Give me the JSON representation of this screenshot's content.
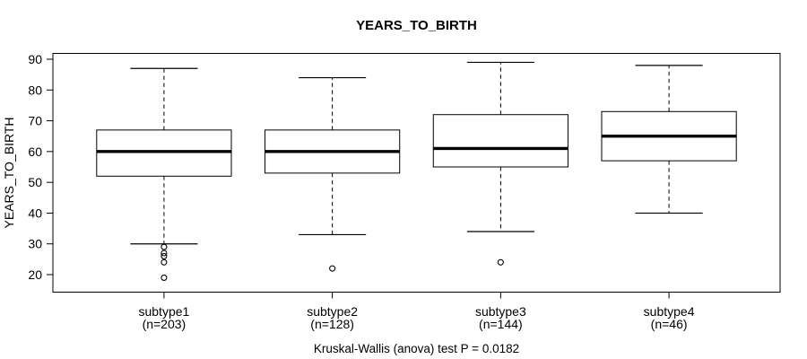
{
  "title": "YEARS_TO_BIRTH",
  "y_axis": {
    "label": "YEARS_TO_BIRTH",
    "ticks": [
      20,
      30,
      40,
      50,
      60,
      70,
      80,
      90
    ]
  },
  "caption": "Kruskal-Wallis (anova) test P = 0.0182",
  "colors": {
    "line": "#000000",
    "box_fill": "#ffffff",
    "background": "#ffffff"
  },
  "chart_data": {
    "type": "boxplot",
    "title": "YEARS_TO_BIRTH",
    "xlabel": "",
    "ylabel": "YEARS_TO_BIRTH",
    "ylim": [
      20,
      90
    ],
    "y_ticks": [
      20,
      30,
      40,
      50,
      60,
      70,
      80,
      90
    ],
    "grid": false,
    "legend": null,
    "annotation": "Kruskal-Wallis (anova) test P = 0.0182",
    "categories": [
      "subtype1",
      "subtype2",
      "subtype3",
      "subtype4"
    ],
    "groups": [
      {
        "label": "subtype1",
        "n": 203,
        "n_label": "(n=203)",
        "whisker_low": 30,
        "q1": 52,
        "median": 60,
        "q3": 67,
        "whisker_high": 87,
        "outliers": [
          29,
          27,
          26,
          24,
          19
        ]
      },
      {
        "label": "subtype2",
        "n": 128,
        "n_label": "(n=128)",
        "whisker_low": 33,
        "q1": 53,
        "median": 60,
        "q3": 67,
        "whisker_high": 84,
        "outliers": [
          22
        ]
      },
      {
        "label": "subtype3",
        "n": 144,
        "n_label": "(n=144)",
        "whisker_low": 34,
        "q1": 55,
        "median": 61,
        "q3": 72,
        "whisker_high": 89,
        "outliers": [
          24
        ]
      },
      {
        "label": "subtype4",
        "n": 46,
        "n_label": "(n=46)",
        "whisker_low": 40,
        "q1": 57,
        "median": 65,
        "q3": 73,
        "whisker_high": 88,
        "outliers": []
      }
    ]
  }
}
